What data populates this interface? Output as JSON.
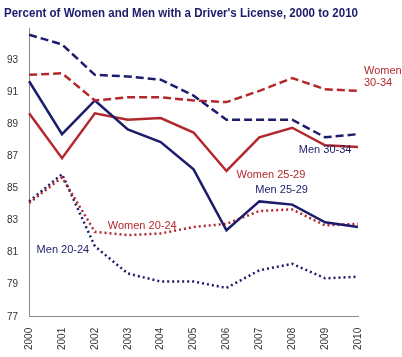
{
  "chart_data": {
    "type": "line",
    "title": "Percent of Women and Men with a Driver's License, 2000 to 2010",
    "categories": [
      "2000",
      "2001",
      "2002",
      "2003",
      "2004",
      "2005",
      "2006",
      "2007",
      "2008",
      "2009",
      "2010"
    ],
    "series": [
      {
        "name": "Men 30-34",
        "color": "#1c1c6b",
        "line_style": "dashed",
        "values": [
          94.6,
          94.0,
          92.1,
          92.0,
          91.8,
          90.8,
          89.3,
          89.3,
          89.3,
          88.2,
          88.4
        ]
      },
      {
        "name": "Women 30-34",
        "color": "#b3282d",
        "line_style": "dashed",
        "values": [
          92.1,
          92.2,
          90.5,
          90.7,
          90.7,
          90.5,
          90.4,
          91.1,
          91.9,
          91.2,
          91.1
        ]
      },
      {
        "name": "Men 25-29",
        "color": "#1c1c6b",
        "line_style": "solid",
        "values": [
          91.7,
          88.4,
          90.5,
          88.7,
          87.9,
          86.2,
          82.4,
          84.2,
          84.0,
          82.9,
          82.6
        ]
      },
      {
        "name": "Women 25-29",
        "color": "#b3282d",
        "line_style": "solid",
        "values": [
          89.7,
          86.9,
          89.7,
          89.3,
          89.4,
          88.5,
          86.1,
          88.2,
          88.8,
          87.7,
          87.6
        ]
      },
      {
        "name": "Women 20-24",
        "color": "#b3282d",
        "line_style": "dotted",
        "values": [
          84.1,
          85.7,
          82.3,
          82.1,
          82.2,
          82.6,
          82.8,
          83.6,
          83.7,
          82.7,
          82.8
        ]
      },
      {
        "name": "Men 20-24",
        "color": "#1c1c6b",
        "line_style": "dotted",
        "values": [
          84.2,
          85.9,
          81.4,
          79.7,
          79.2,
          79.2,
          78.8,
          79.9,
          80.3,
          79.4,
          79.5
        ]
      }
    ],
    "ylim": [
      77,
      95
    ],
    "yticks": [
      77,
      79,
      81,
      83,
      85,
      87,
      89,
      91,
      93
    ],
    "grid": false,
    "marker": "none"
  }
}
